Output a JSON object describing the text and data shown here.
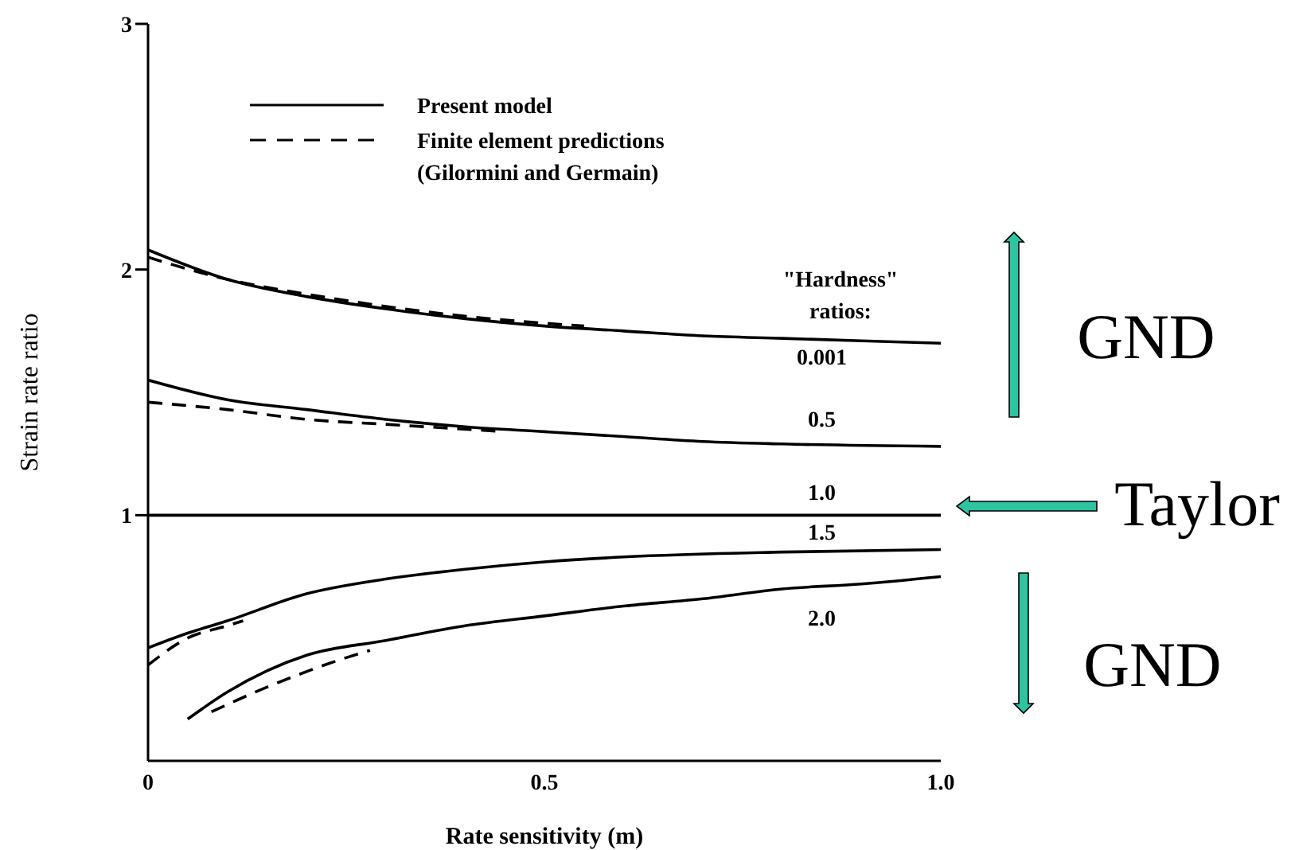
{
  "chart_data": {
    "type": "line",
    "xlabel": "Rate sensitivity (m)",
    "ylabel": "Strain rate ratio",
    "xlim": [
      0,
      1
    ],
    "xticks": [
      0,
      0.5,
      {
        "value": 1,
        "label": "1.0"
      }
    ],
    "ylim": [
      0,
      3
    ],
    "yticks": [
      1,
      2,
      3
    ],
    "marker": "none",
    "series": [
      {
        "name": "0.001",
        "color": "#000000",
        "line_style": "solid",
        "x": [
          0,
          0.1,
          0.2,
          0.3,
          0.4,
          0.5,
          0.6,
          0.7,
          0.8,
          0.9,
          1
        ],
        "values": [
          2.08,
          1.96,
          1.89,
          1.84,
          1.8,
          1.77,
          1.75,
          1.73,
          1.72,
          1.71,
          1.7
        ]
      },
      {
        "name": "0.5",
        "color": "#000000",
        "line_style": "solid",
        "x": [
          0,
          0.1,
          0.2,
          0.3,
          0.4,
          0.5,
          0.6,
          0.7,
          0.8,
          1
        ],
        "values": [
          1.55,
          1.47,
          1.43,
          1.39,
          1.36,
          1.34,
          1.32,
          1.3,
          1.29,
          1.28
        ]
      },
      {
        "name": "1.0",
        "color": "#000000",
        "line_style": "solid",
        "x": [
          0,
          0.5,
          1
        ],
        "values": [
          1,
          1,
          1
        ]
      },
      {
        "name": "1.5",
        "color": "#000000",
        "line_style": "solid",
        "x": [
          0,
          0.05,
          0.1,
          0.2,
          0.3,
          0.4,
          0.5,
          0.6,
          0.8,
          1
        ],
        "values": [
          0.46,
          0.52,
          0.57,
          0.68,
          0.74,
          0.78,
          0.81,
          0.83,
          0.85,
          0.86
        ]
      },
      {
        "name": "2.0",
        "color": "#000000",
        "line_style": "solid",
        "x": [
          0.05,
          0.1,
          0.2,
          0.3,
          0.4,
          0.5,
          0.6,
          0.7,
          0.8,
          0.9,
          1
        ],
        "values": [
          0.17,
          0.28,
          0.43,
          0.49,
          0.55,
          0.59,
          0.63,
          0.66,
          0.7,
          0.72,
          0.75
        ]
      },
      {
        "color": "#000000",
        "line_style": "dashed",
        "x": [
          0,
          0.1,
          0.2,
          0.3,
          0.4,
          0.55
        ],
        "values": [
          2.05,
          1.96,
          1.9,
          1.85,
          1.81,
          1.77
        ]
      },
      {
        "color": "#000000",
        "line_style": "dashed",
        "x": [
          0,
          0.1,
          0.2,
          0.3,
          0.45
        ],
        "values": [
          1.46,
          1.43,
          1.39,
          1.37,
          1.34
        ]
      },
      {
        "color": "#000000",
        "line_style": "dashed",
        "x": [
          0,
          0.05,
          0.1,
          0.12
        ],
        "values": [
          0.39,
          0.5,
          0.55,
          0.57
        ]
      },
      {
        "color": "#000000",
        "line_style": "dashed",
        "x": [
          0.08,
          0.15,
          0.25,
          0.28
        ],
        "values": [
          0.2,
          0.3,
          0.42,
          0.45
        ]
      }
    ],
    "annotations": [
      "Present model",
      "Finite element predictions\n(Gilormini and Germain)",
      "\"Hardness\"\nratios:",
      "GND",
      "Taylor",
      "GND"
    ]
  }
}
